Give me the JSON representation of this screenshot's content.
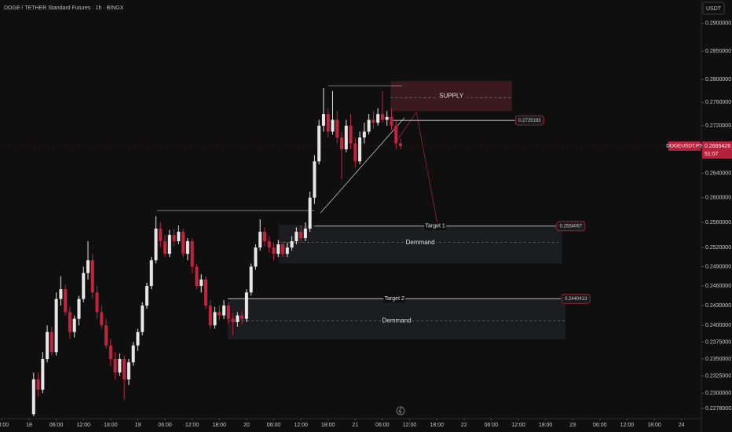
{
  "chart_data": {
    "type": "candlestick",
    "title": "DOGE / TETHER Standard Futures · 1h · BINGX",
    "currency": "USDT",
    "symbol": "DOGEUSDT.PS",
    "countdown": "51:07",
    "log_scale": true,
    "grid": false,
    "up_color": "#e6e6e6",
    "down_color": "#c0253f",
    "xlim": [
      -6.42,
      148.4
    ],
    "ylim": [
      0.2267,
      0.2943
    ],
    "xticks": [
      {
        "value": -6,
        "label": "18:00"
      },
      {
        "value": 0,
        "label": "18"
      },
      {
        "value": 6,
        "label": "06:00"
      },
      {
        "value": 12,
        "label": "12:00"
      },
      {
        "value": 18,
        "label": "18:00"
      },
      {
        "value": 24,
        "label": "19"
      },
      {
        "value": 30,
        "label": "06:00"
      },
      {
        "value": 36,
        "label": "12:00"
      },
      {
        "value": 42,
        "label": "18:00"
      },
      {
        "value": 48,
        "label": "20"
      },
      {
        "value": 54,
        "label": "06:00"
      },
      {
        "value": 60,
        "label": "12:00"
      },
      {
        "value": 66,
        "label": "18:00"
      },
      {
        "value": 72,
        "label": "21"
      },
      {
        "value": 78,
        "label": "06:00"
      },
      {
        "value": 84,
        "label": "12:00"
      },
      {
        "value": 90,
        "label": "18:00"
      },
      {
        "value": 96,
        "label": "22"
      },
      {
        "value": 102,
        "label": "06:00"
      },
      {
        "value": 108,
        "label": "12:00"
      },
      {
        "value": 114,
        "label": "18:00"
      },
      {
        "value": 120,
        "label": "23"
      },
      {
        "value": 126,
        "label": "06:00"
      },
      {
        "value": 132,
        "label": "12:00"
      },
      {
        "value": 138,
        "label": "18:00"
      },
      {
        "value": 144,
        "label": "24"
      }
    ],
    "yticks": [
      {
        "value": 0.29,
        "label": "0.2900000"
      },
      {
        "value": 0.285,
        "label": "0.2850000"
      },
      {
        "value": 0.28,
        "label": "0.2800000"
      },
      {
        "value": 0.276,
        "label": "0.2760000"
      },
      {
        "value": 0.272,
        "label": "0.2720000"
      },
      {
        "value": 0.264,
        "label": "0.2640000"
      },
      {
        "value": 0.26,
        "label": "0.2600000"
      },
      {
        "value": 0.256,
        "label": "0.2560000"
      },
      {
        "value": 0.252,
        "label": "0.2520000"
      },
      {
        "value": 0.249,
        "label": "0.2490000"
      },
      {
        "value": 0.246,
        "label": "0.2460000"
      },
      {
        "value": 0.243,
        "label": "0.2430000"
      },
      {
        "value": 0.24,
        "label": "0.2400000"
      },
      {
        "value": 0.2375,
        "label": "0.2375000"
      },
      {
        "value": 0.235,
        "label": "0.2350000"
      },
      {
        "value": 0.2325,
        "label": "0.2325000"
      },
      {
        "value": 0.23,
        "label": "0.2300000"
      },
      {
        "value": 0.2278,
        "label": "0.2278000"
      }
    ],
    "x": [
      1,
      2,
      3,
      4,
      5,
      6,
      7,
      8,
      9,
      10,
      11,
      12,
      13,
      14,
      15,
      16,
      17,
      18,
      19,
      20,
      21,
      22,
      23,
      24,
      25,
      26,
      27,
      28,
      29,
      30,
      31,
      32,
      33,
      34,
      35,
      36,
      37,
      38,
      39,
      40,
      41,
      42,
      43,
      44,
      45,
      46,
      47,
      48,
      49,
      50,
      51,
      52,
      53,
      54,
      55,
      56,
      57,
      58,
      59,
      60,
      61,
      62,
      63,
      64,
      65,
      66,
      67,
      68,
      69,
      70,
      71,
      72,
      73,
      74,
      75,
      76,
      77,
      78,
      79,
      80,
      81,
      82
    ],
    "open": [
      0.227,
      0.232,
      0.2305,
      0.235,
      0.239,
      0.236,
      0.244,
      0.2455,
      0.242,
      0.239,
      0.241,
      0.244,
      0.248,
      0.25,
      0.245,
      0.242,
      0.24,
      0.237,
      0.235,
      0.233,
      0.235,
      0.232,
      0.2345,
      0.237,
      0.239,
      0.243,
      0.246,
      0.25,
      0.255,
      0.253,
      0.251,
      0.254,
      0.253,
      0.2545,
      0.251,
      0.253,
      0.249,
      0.246,
      0.247,
      0.243,
      0.24,
      0.242,
      0.2415,
      0.243,
      0.241,
      0.2405,
      0.2415,
      0.241,
      0.245,
      0.249,
      0.252,
      0.2545,
      0.253,
      0.252,
      0.251,
      0.2525,
      0.251,
      0.252,
      0.253,
      0.2545,
      0.2535,
      0.255,
      0.26,
      0.266,
      0.272,
      0.274,
      0.271,
      0.273,
      0.27,
      0.268,
      0.272,
      0.269,
      0.266,
      0.27,
      0.271,
      0.273,
      0.2725,
      0.274,
      0.273,
      0.2735,
      0.272,
      0.269
    ],
    "high": [
      0.233,
      0.233,
      0.236,
      0.24,
      0.2398,
      0.245,
      0.2475,
      0.2462,
      0.2428,
      0.2415,
      0.2445,
      0.249,
      0.253,
      0.251,
      0.246,
      0.243,
      0.241,
      0.238,
      0.236,
      0.2358,
      0.2355,
      0.235,
      0.2375,
      0.2395,
      0.2435,
      0.2465,
      0.2505,
      0.257,
      0.256,
      0.254,
      0.2548,
      0.255,
      0.2555,
      0.255,
      0.2535,
      0.2535,
      0.2495,
      0.2478,
      0.2475,
      0.2438,
      0.2428,
      0.243,
      0.2438,
      0.2435,
      0.2418,
      0.242,
      0.2422,
      0.2455,
      0.2495,
      0.2525,
      0.2565,
      0.2552,
      0.2538,
      0.2528,
      0.2532,
      0.253,
      0.2528,
      0.2538,
      0.2552,
      0.2555,
      0.256,
      0.261,
      0.267,
      0.273,
      0.2785,
      0.275,
      0.278,
      0.2745,
      0.271,
      0.273,
      0.274,
      0.27,
      0.271,
      0.2725,
      0.274,
      0.2745,
      0.275,
      0.278,
      0.2745,
      0.275,
      0.2728,
      0.2698
    ],
    "low": [
      0.2262,
      0.2295,
      0.23,
      0.2345,
      0.2355,
      0.2355,
      0.243,
      0.2415,
      0.238,
      0.2382,
      0.24,
      0.2435,
      0.247,
      0.244,
      0.241,
      0.2395,
      0.2365,
      0.234,
      0.232,
      0.2325,
      0.229,
      0.2312,
      0.234,
      0.2362,
      0.2385,
      0.2425,
      0.2455,
      0.2495,
      0.252,
      0.2505,
      0.2505,
      0.2522,
      0.2525,
      0.2505,
      0.25,
      0.248,
      0.2455,
      0.245,
      0.2425,
      0.2395,
      0.2395,
      0.2408,
      0.241,
      0.2402,
      0.2385,
      0.2398,
      0.2402,
      0.2405,
      0.2445,
      0.2485,
      0.2515,
      0.2522,
      0.2512,
      0.25,
      0.2505,
      0.2505,
      0.2505,
      0.2515,
      0.2525,
      0.2528,
      0.253,
      0.2545,
      0.259,
      0.2655,
      0.271,
      0.27,
      0.2705,
      0.269,
      0.263,
      0.2675,
      0.268,
      0.265,
      0.2655,
      0.269,
      0.2705,
      0.2715,
      0.272,
      0.2725,
      0.272,
      0.2712,
      0.268,
      0.268
    ],
    "close": [
      0.232,
      0.2305,
      0.235,
      0.239,
      0.236,
      0.244,
      0.2455,
      0.242,
      0.239,
      0.241,
      0.244,
      0.248,
      0.25,
      0.245,
      0.242,
      0.24,
      0.237,
      0.235,
      0.233,
      0.235,
      0.232,
      0.2345,
      0.237,
      0.239,
      0.243,
      0.246,
      0.25,
      0.255,
      0.253,
      0.251,
      0.254,
      0.253,
      0.2545,
      0.251,
      0.253,
      0.249,
      0.246,
      0.247,
      0.243,
      0.24,
      0.242,
      0.2415,
      0.243,
      0.241,
      0.2405,
      0.2415,
      0.241,
      0.245,
      0.249,
      0.252,
      0.2545,
      0.253,
      0.252,
      0.251,
      0.2525,
      0.251,
      0.252,
      0.253,
      0.2545,
      0.2535,
      0.255,
      0.26,
      0.266,
      0.272,
      0.274,
      0.271,
      0.273,
      0.27,
      0.268,
      0.272,
      0.269,
      0.266,
      0.27,
      0.271,
      0.273,
      0.2725,
      0.274,
      0.273,
      0.2735,
      0.272,
      0.269,
      0.2685428
    ],
    "zones": [
      {
        "label": "SUPPLY",
        "top": 0.2797,
        "bottom": 0.2745,
        "mid": 0.2768,
        "start": 79.8,
        "end": 106.6,
        "color": "#3a1a1f"
      },
      {
        "label": "Demmand",
        "top": 0.2556,
        "bottom": 0.2495,
        "mid": 0.2528,
        "start": 55.1,
        "end": 117.6,
        "color": "#1c1d21"
      },
      {
        "label": "Demmand",
        "top": 0.244,
        "bottom": 0.2379,
        "mid": 0.2407,
        "start": 43.9,
        "end": 118.4,
        "color": "#1c1d21"
      }
    ],
    "levels": [
      {
        "value": 0.2729183,
        "start": 79.8,
        "end": 107.2
      },
      {
        "name": "Target 1",
        "value": 0.2554067,
        "start": 63,
        "end": 116.3
      },
      {
        "name": "Target 2",
        "value": 0.2440413,
        "start": 43.9,
        "end": 117.4
      }
    ],
    "lines": [
      {
        "points": [
          [
            66,
            0.2789
          ],
          [
            82.4,
            0.2789
          ]
        ],
        "color": "#9a9a9a"
      },
      {
        "points": [
          [
            28.2,
            0.2579
          ],
          [
            63,
            0.2579
          ]
        ],
        "color": "#9a9a9a"
      },
      {
        "points": [
          [
            64.3,
            0.2575
          ],
          [
            82.9,
            0.2734
          ]
        ],
        "color": "#bdbdbd"
      },
      {
        "points": [
          [
            81.2,
            0.2695
          ],
          [
            85.5,
            0.2743
          ],
          [
            90.3,
            0.2552
          ]
        ],
        "color": "#8e2a33"
      }
    ]
  }
}
